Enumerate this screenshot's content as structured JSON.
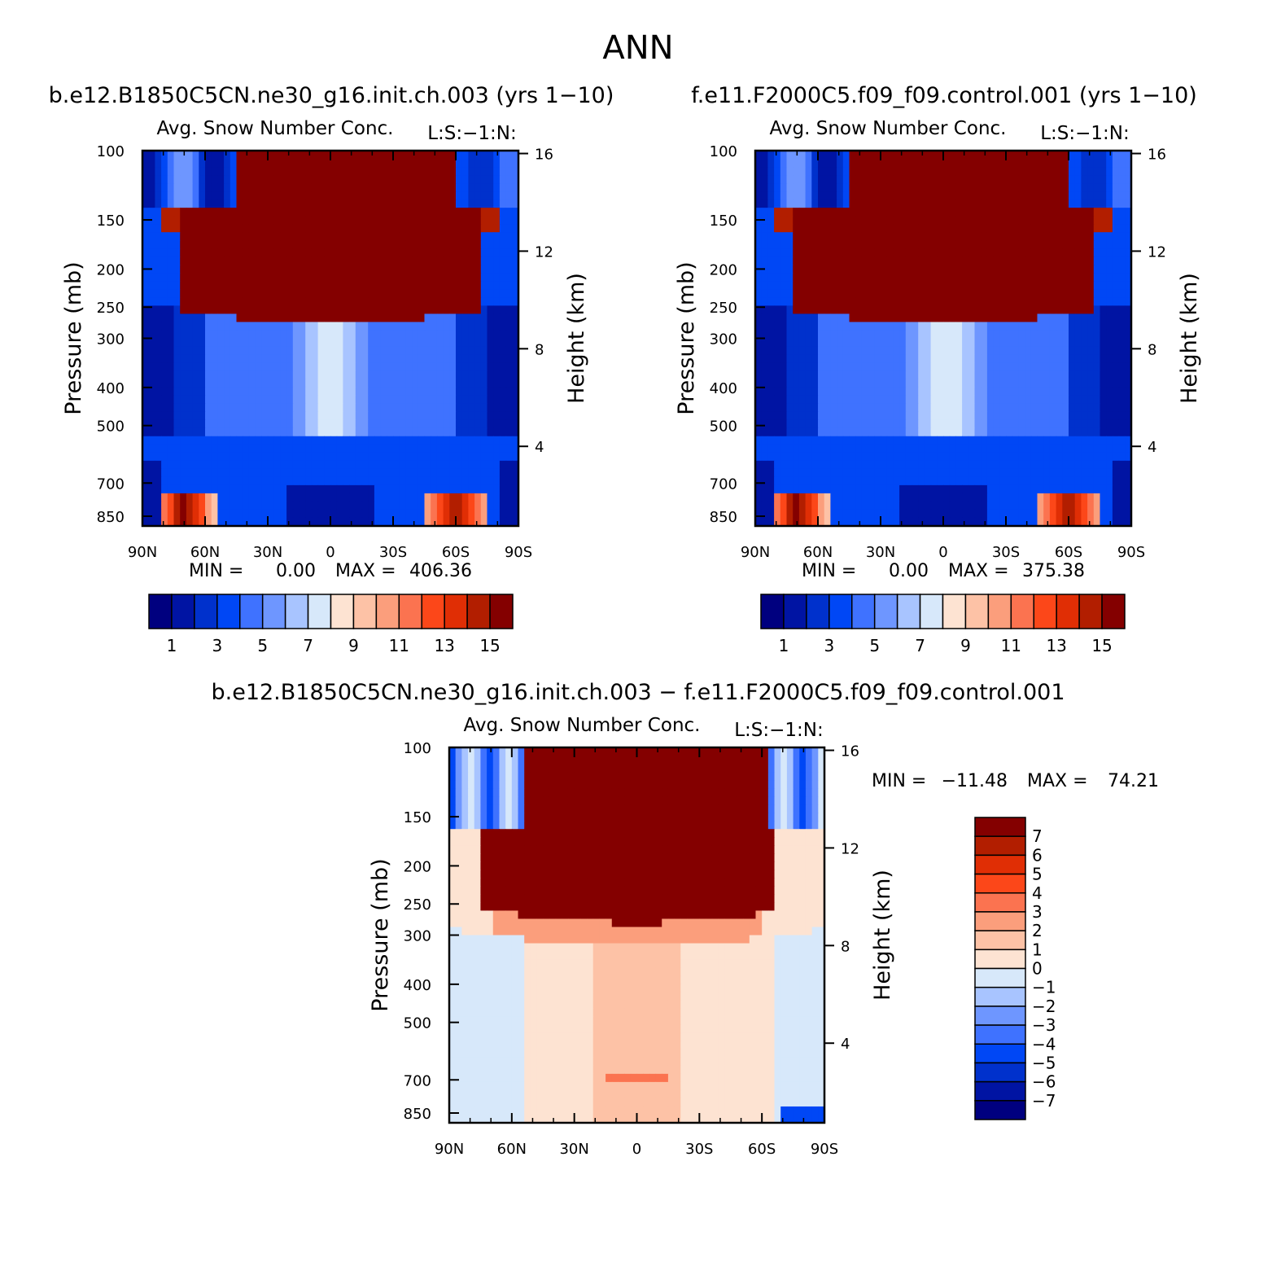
{
  "page": {
    "title": "ANN"
  },
  "colors": {
    "absolute_scale": [
      "#00007f",
      "#0014a3",
      "#0031cc",
      "#0047f5",
      "#3f72ff",
      "#6e96ff",
      "#a8c4ff",
      "#d7e8fa",
      "#fde3d2",
      "#fdc2a6",
      "#fb9e7c",
      "#fb7350",
      "#fc4719",
      "#e02e05",
      "#b21e00",
      "#840000"
    ],
    "difference_scale": [
      "#00007f",
      "#0014a3",
      "#0031cc",
      "#0047f5",
      "#3f72ff",
      "#6e96ff",
      "#a8c4ff",
      "#d7e8fa",
      "#fde3d2",
      "#fdc2a6",
      "#fb9e7c",
      "#fb7350",
      "#fc4719",
      "#e02e05",
      "#b21e00",
      "#840000"
    ]
  },
  "chart_data": [
    {
      "type": "heatmap",
      "case": "b.e12.B1850C5CN.ne30_g16.init.ch.003 (yrs 1−10)",
      "title": "Avg. Snow Number Conc.",
      "units": "L:S:−1:N:",
      "ylabel": "Pressure (mb)",
      "ylabel_right": "Height (km)",
      "x_ticks": [
        "90N",
        "60N",
        "30N",
        "0",
        "30S",
        "60S",
        "90S"
      ],
      "y_ticks": [
        "100",
        "150",
        "200",
        "250",
        "300",
        "400",
        "500",
        "700",
        "850"
      ],
      "y_right_ticks": [
        "16",
        "12",
        "8",
        "4"
      ],
      "min_label": "MIN =",
      "min_value": "0.00",
      "max_label": "MAX =",
      "max_value": "406.36",
      "colorbar_labels": [
        "1",
        "3",
        "5",
        "7",
        "9",
        "11",
        "13",
        "15"
      ]
    },
    {
      "type": "heatmap",
      "case": "f.e11.F2000C5.f09_f09.control.001 (yrs 1−10)",
      "title": "Avg. Snow Number Conc.",
      "units": "L:S:−1:N:",
      "ylabel": "Pressure (mb)",
      "ylabel_right": "Height (km)",
      "x_ticks": [
        "90N",
        "60N",
        "30N",
        "0",
        "30S",
        "60S",
        "90S"
      ],
      "y_ticks": [
        "100",
        "150",
        "200",
        "250",
        "300",
        "400",
        "500",
        "700",
        "850"
      ],
      "y_right_ticks": [
        "16",
        "12",
        "8",
        "4"
      ],
      "min_label": "MIN =",
      "min_value": "0.00",
      "max_label": "MAX =",
      "max_value": "375.38",
      "colorbar_labels": [
        "1",
        "3",
        "5",
        "7",
        "9",
        "11",
        "13",
        "15"
      ]
    },
    {
      "type": "heatmap",
      "case": "b.e12.B1850C5CN.ne30_g16.init.ch.003 − f.e11.F2000C5.f09_f09.control.001",
      "title": "Avg. Snow Number Conc.",
      "units": "L:S:−1:N:",
      "ylabel": "Pressure (mb)",
      "ylabel_right": "Height (km)",
      "x_ticks": [
        "90N",
        "60N",
        "30N",
        "0",
        "30S",
        "60S",
        "90S"
      ],
      "y_ticks": [
        "100",
        "150",
        "200",
        "250",
        "300",
        "400",
        "500",
        "700",
        "850"
      ],
      "y_right_ticks": [
        "16",
        "12",
        "8",
        "4"
      ],
      "min_label": "MIN =",
      "min_value": "−11.48",
      "max_label": "MAX =",
      "max_value": "74.21",
      "colorbar_labels": [
        "7",
        "6",
        "5",
        "4",
        "3",
        "2",
        "1",
        "0",
        "−1",
        "−2",
        "−3",
        "−4",
        "−5",
        "−6",
        "−7"
      ]
    }
  ]
}
